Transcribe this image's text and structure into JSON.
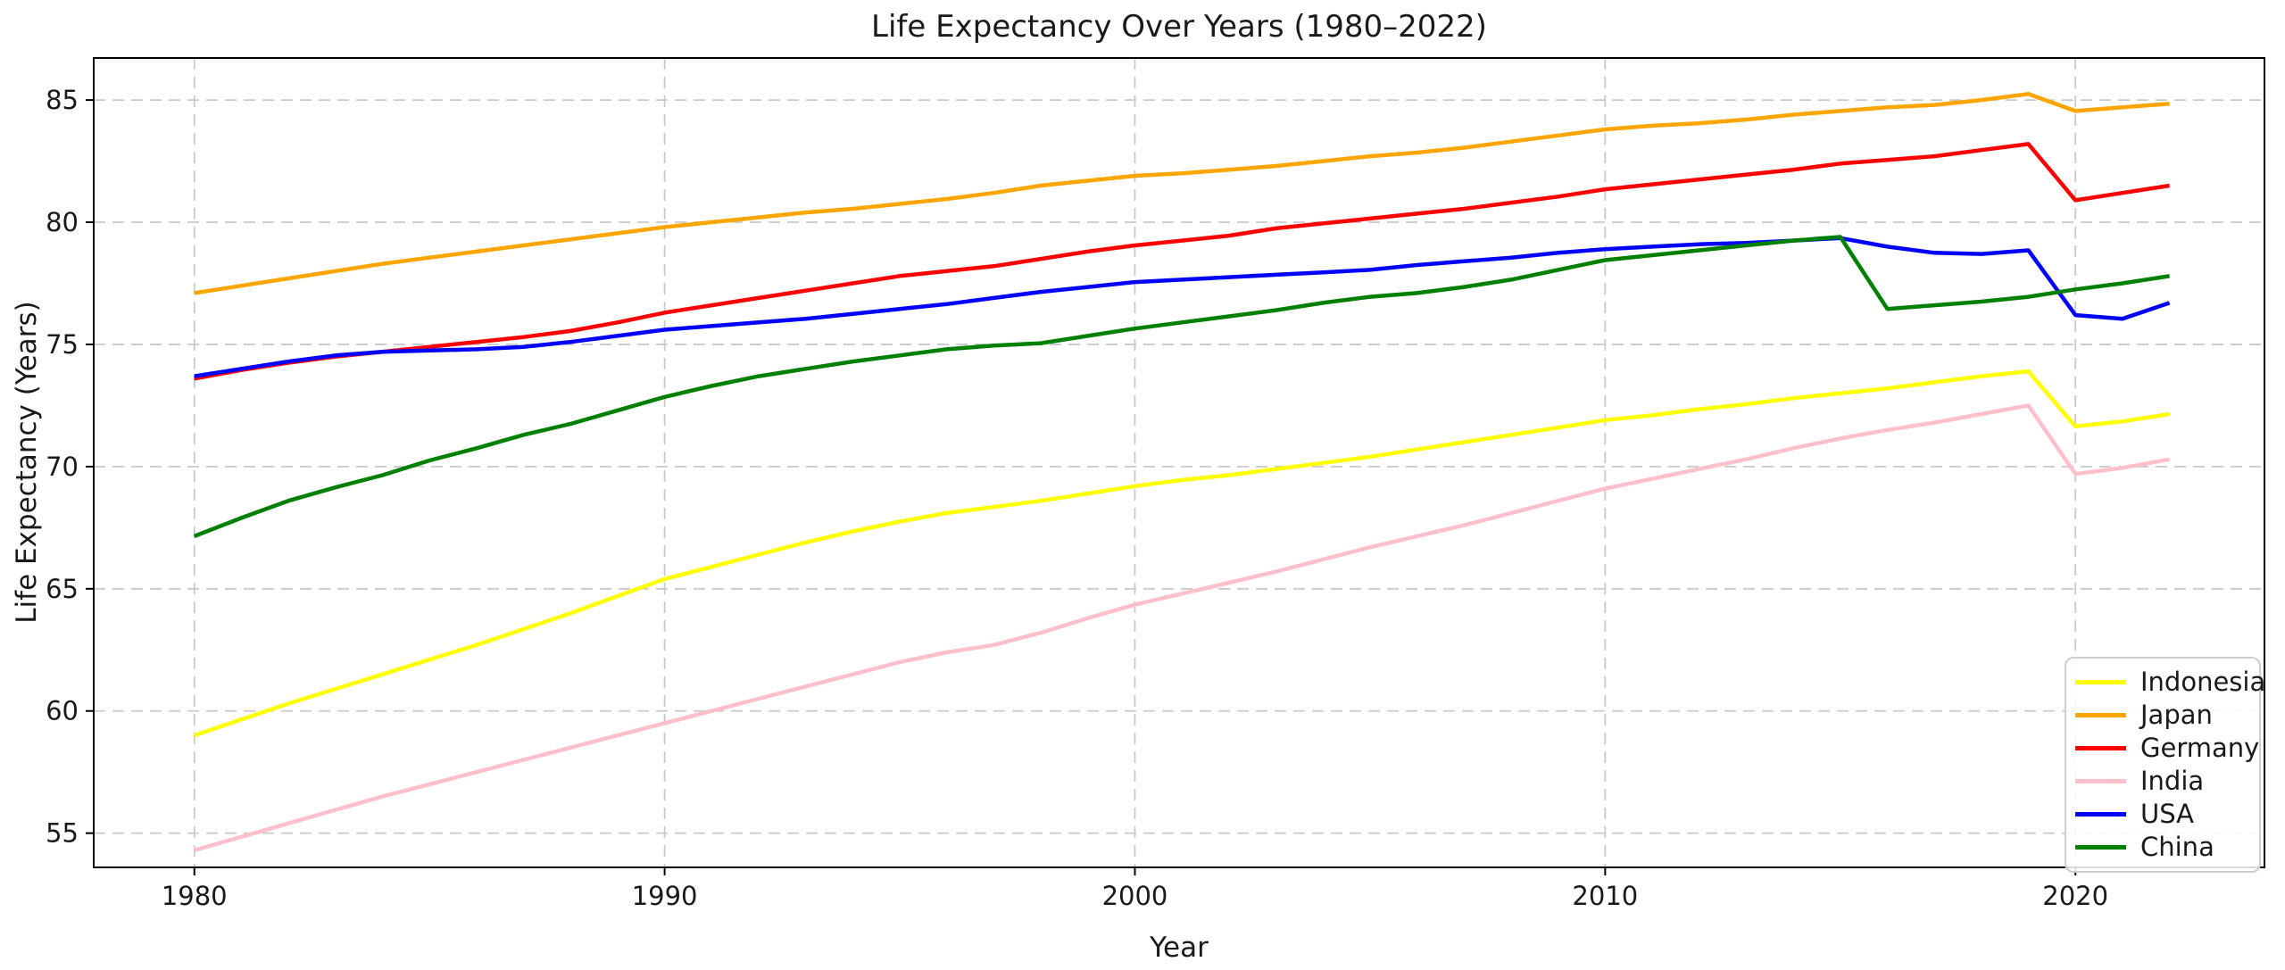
{
  "figure": {
    "title": "Life Expectancy Over Years (1980–2022)",
    "xlabel": "Year",
    "ylabel": "Life Expectancy (Years)"
  },
  "chart_data": {
    "type": "line",
    "title": "Life Expectancy Over Years (1980–2022)",
    "xlabel": "Year",
    "ylabel": "Life Expectancy (Years)",
    "grid": true,
    "grid_style": "dashed",
    "grid_color": "#c9c9c9",
    "axis_color": "#000000",
    "background_color": "#ffffff",
    "legend_position": "lower right",
    "line_width": 4.5,
    "xlim": [
      1977.86,
      2024.02
    ],
    "ylim": [
      53.6,
      86.72
    ],
    "x_ticks": [
      1980,
      1990,
      2000,
      2010,
      2020
    ],
    "y_ticks": [
      55,
      60,
      65,
      70,
      75,
      80,
      85
    ],
    "x": [
      1980,
      1981,
      1982,
      1983,
      1984,
      1985,
      1986,
      1987,
      1988,
      1989,
      1990,
      1991,
      1992,
      1993,
      1994,
      1995,
      1996,
      1997,
      1998,
      1999,
      2000,
      2001,
      2002,
      2003,
      2004,
      2005,
      2006,
      2007,
      2008,
      2009,
      2010,
      2011,
      2012,
      2013,
      2014,
      2015,
      2016,
      2017,
      2018,
      2019,
      2020,
      2021,
      2022
    ],
    "series": [
      {
        "name": "Indonesia",
        "color": "#ffff00",
        "values": [
          59.0,
          59.65,
          60.3,
          60.9,
          61.5,
          62.1,
          62.7,
          63.35,
          64.0,
          64.7,
          65.4,
          65.9,
          66.4,
          66.9,
          67.35,
          67.75,
          68.1,
          68.35,
          68.6,
          68.9,
          69.2,
          69.45,
          69.65,
          69.9,
          70.15,
          70.4,
          70.7,
          71.0,
          71.3,
          71.6,
          71.9,
          72.1,
          72.35,
          72.55,
          72.8,
          73.0,
          73.2,
          73.45,
          73.7,
          73.9,
          71.65,
          71.85,
          72.15
        ]
      },
      {
        "name": "Japan",
        "color": "#ffa500",
        "values": [
          77.1,
          77.4,
          77.7,
          78.0,
          78.3,
          78.55,
          78.8,
          79.05,
          79.3,
          79.55,
          79.8,
          80.0,
          80.2,
          80.4,
          80.55,
          80.75,
          80.95,
          81.2,
          81.5,
          81.7,
          81.9,
          82.0,
          82.15,
          82.3,
          82.5,
          82.7,
          82.85,
          83.05,
          83.3,
          83.55,
          83.8,
          83.95,
          84.05,
          84.2,
          84.4,
          84.55,
          84.7,
          84.8,
          85.0,
          85.25,
          84.55,
          84.7,
          84.85
        ]
      },
      {
        "name": "Germany",
        "color": "#ff0000",
        "values": [
          73.6,
          73.95,
          74.25,
          74.5,
          74.7,
          74.9,
          75.1,
          75.3,
          75.55,
          75.9,
          76.3,
          76.6,
          76.9,
          77.2,
          77.5,
          77.8,
          78.0,
          78.2,
          78.5,
          78.8,
          79.05,
          79.25,
          79.45,
          79.75,
          79.95,
          80.15,
          80.35,
          80.55,
          80.8,
          81.05,
          81.35,
          81.55,
          81.75,
          81.95,
          82.15,
          82.4,
          82.55,
          82.7,
          82.95,
          83.2,
          80.9,
          81.2,
          81.5
        ]
      },
      {
        "name": "India",
        "color": "#ffc0cb",
        "values": [
          54.3,
          54.85,
          55.4,
          55.95,
          56.5,
          57.0,
          57.5,
          58.0,
          58.5,
          59.0,
          59.5,
          60.0,
          60.5,
          61.0,
          61.5,
          62.0,
          62.4,
          62.7,
          63.2,
          63.8,
          64.35,
          64.8,
          65.25,
          65.7,
          66.2,
          66.7,
          67.15,
          67.6,
          68.1,
          68.6,
          69.1,
          69.5,
          69.9,
          70.3,
          70.75,
          71.15,
          71.5,
          71.8,
          72.15,
          72.5,
          69.7,
          69.95,
          70.3
        ]
      },
      {
        "name": "USA",
        "color": "#0000ff",
        "values": [
          73.7,
          74.0,
          74.3,
          74.55,
          74.7,
          74.75,
          74.8,
          74.9,
          75.1,
          75.35,
          75.6,
          75.75,
          75.9,
          76.05,
          76.25,
          76.45,
          76.65,
          76.9,
          77.15,
          77.35,
          77.55,
          77.65,
          77.75,
          77.85,
          77.95,
          78.05,
          78.25,
          78.4,
          78.55,
          78.75,
          78.9,
          79.0,
          79.1,
          79.15,
          79.25,
          79.35,
          79.0,
          78.75,
          78.7,
          78.85,
          76.2,
          76.05,
          76.7
        ]
      },
      {
        "name": "China",
        "color": "#008000",
        "values": [
          67.15,
          67.9,
          68.6,
          69.15,
          69.65,
          70.25,
          70.75,
          71.3,
          71.75,
          72.3,
          72.85,
          73.3,
          73.7,
          74.0,
          74.3,
          74.55,
          74.8,
          74.95,
          75.05,
          75.35,
          75.65,
          75.9,
          76.15,
          76.4,
          76.7,
          76.95,
          77.1,
          77.35,
          77.65,
          78.05,
          78.45,
          78.65,
          78.85,
          79.05,
          79.25,
          79.4,
          76.45,
          76.6,
          76.75,
          76.95,
          77.25,
          77.5,
          77.8
        ]
      }
    ]
  }
}
